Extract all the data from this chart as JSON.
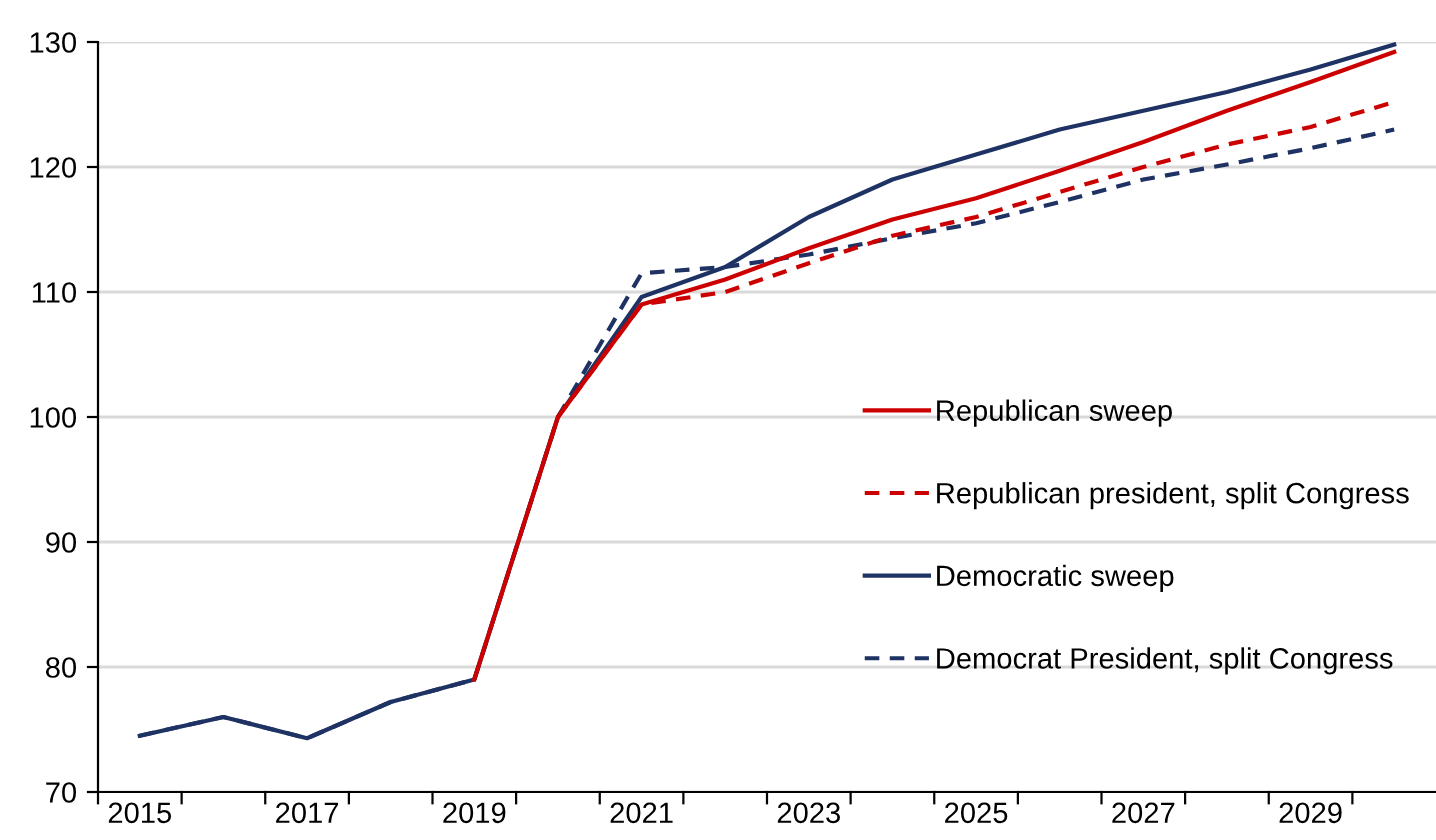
{
  "chart_data": {
    "type": "line",
    "categories": [
      "2015",
      null,
      "2017",
      null,
      "2019",
      null,
      "2021",
      null,
      "2023",
      null,
      "2025",
      null,
      "2027",
      null,
      "2029",
      null
    ],
    "series": [
      {
        "name": "Republican sweep",
        "color": "#cc0000",
        "line_style": "solid",
        "values": [
          null,
          null,
          null,
          null,
          79,
          100,
          109,
          111,
          113.5,
          115.8,
          117.5,
          119.7,
          122,
          124.5,
          126.8,
          129.2
        ]
      },
      {
        "name": "Republican president, split Congress",
        "color": "#cc0000",
        "line_style": "dashed",
        "values": [
          null,
          null,
          null,
          null,
          null,
          100,
          109,
          110,
          112.3,
          114.5,
          116,
          118,
          120,
          121.8,
          123.2,
          125.2
        ]
      },
      {
        "name": "Democratic sweep",
        "color": "#1f3264",
        "line_style": "solid",
        "values": [
          74.5,
          76,
          74.3,
          77.2,
          79,
          100,
          109.6,
          112,
          116,
          119,
          121,
          123,
          124.5,
          126,
          127.8,
          129.8
        ]
      },
      {
        "name": "Democrat President, split Congress",
        "color": "#1f3264",
        "line_style": "dashed",
        "values": [
          74.5,
          76,
          74.3,
          77.2,
          79,
          100,
          111.5,
          112,
          113,
          114.3,
          115.5,
          117.2,
          119,
          120.2,
          121.5,
          123
        ]
      }
    ],
    "ylim": [
      70,
      130
    ],
    "yticks": [
      70,
      80,
      90,
      100,
      110,
      120,
      130
    ],
    "grid": "y",
    "legend": "right",
    "marker": "none"
  }
}
